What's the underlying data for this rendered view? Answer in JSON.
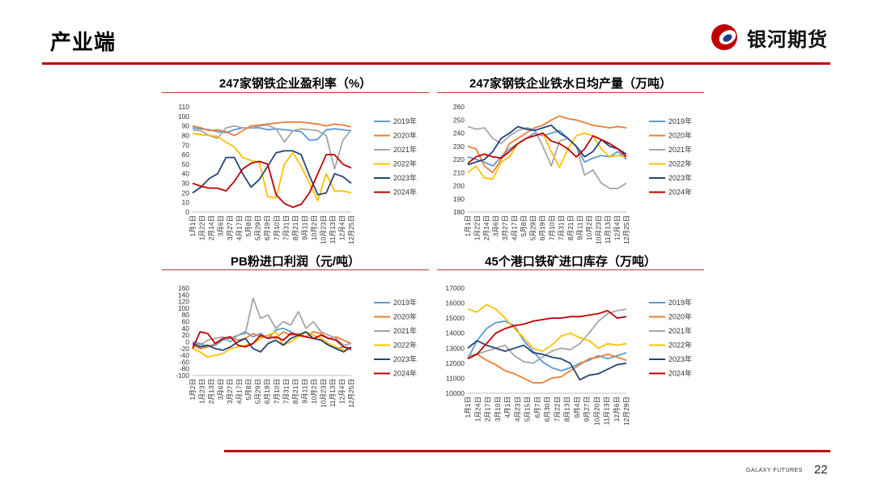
{
  "header": {
    "title": "产业端",
    "brand": "银河期货"
  },
  "footer": {
    "brand": "GALAXY FUTURES",
    "page": "22"
  },
  "chart_data": [
    {
      "type": "line",
      "title": "247家钢铁企业盈利率（%）",
      "ylim": [
        0,
        110
      ],
      "yticks": [
        0,
        10,
        20,
        30,
        40,
        50,
        60,
        70,
        80,
        90,
        100,
        110
      ],
      "xticks": [
        "1月1日",
        "1月22日",
        "2月14日",
        "3月6日",
        "3月27日",
        "4月17日",
        "5月8日",
        "5月29日",
        "6月19日",
        "7月10日",
        "7月31日",
        "8月21日",
        "9月11日",
        "10月2日",
        "10月23日",
        "11月13日",
        "12月4日",
        "12月25日"
      ],
      "grid": false,
      "legend": "right",
      "series": [
        {
          "name": "2019年",
          "color": "#5b9bd5",
          "values": [
            88,
            87,
            86,
            84,
            83,
            86,
            88,
            88,
            88,
            86,
            87,
            86,
            85,
            84,
            75,
            76,
            86,
            87,
            86,
            85
          ]
        },
        {
          "name": "2020年",
          "color": "#ed7d31",
          "values": [
            90,
            88,
            85,
            86,
            84,
            80,
            85,
            90,
            91,
            92,
            93,
            94,
            94,
            94,
            93,
            92,
            90,
            92,
            91,
            89
          ]
        },
        {
          "name": "2021年",
          "color": "#a5a5a5",
          "values": [
            86,
            85,
            80,
            77,
            88,
            90,
            88,
            88,
            90,
            91,
            87,
            73,
            85,
            87,
            86,
            85,
            80,
            45,
            75,
            86
          ]
        },
        {
          "name": "2022年",
          "color": "#ffc000",
          "values": [
            82,
            81,
            80,
            79,
            73,
            68,
            57,
            54,
            52,
            16,
            15,
            50,
            62,
            48,
            30,
            12,
            40,
            22,
            22,
            20
          ]
        },
        {
          "name": "2023年",
          "color": "#264478",
          "values": [
            20,
            26,
            35,
            40,
            57,
            57,
            40,
            26,
            34,
            48,
            62,
            64,
            64,
            60,
            38,
            18,
            20,
            40,
            37,
            30
          ]
        },
        {
          "name": "2024年",
          "color": "#c00000",
          "values": [
            30,
            27,
            25,
            25,
            22,
            32,
            45,
            51,
            53,
            50,
            18,
            9,
            5,
            8,
            20,
            40,
            60,
            60,
            50,
            46
          ]
        }
      ]
    },
    {
      "type": "line",
      "title": "247家钢铁企业铁水日均产量（万吨）",
      "ylim": [
        180,
        260
      ],
      "yticks": [
        180,
        190,
        200,
        210,
        220,
        230,
        240,
        250,
        260
      ],
      "xticks": [
        "1月1日",
        "1月22日",
        "2月14日",
        "3月6日",
        "3月27日",
        "4月17日",
        "5月8日",
        "5月29日",
        "6月19日",
        "7月10日",
        "7月31日",
        "8月21日",
        "9月11日",
        "10月2日",
        "10月23日",
        "11月13日",
        "12月4日",
        "12月25日"
      ],
      "grid": false,
      "legend": "right",
      "series": [
        {
          "name": "2019年",
          "color": "#5b9bd5",
          "values": [
            222,
            220,
            218,
            215,
            222,
            228,
            232,
            236,
            240,
            238,
            240,
            242,
            236,
            230,
            218,
            221,
            223,
            222,
            226,
            220
          ]
        },
        {
          "name": "2020年",
          "color": "#ed7d31",
          "values": [
            230,
            228,
            215,
            210,
            220,
            232,
            236,
            240,
            244,
            246,
            250,
            253,
            251,
            250,
            248,
            246,
            245,
            244,
            245,
            244
          ]
        },
        {
          "name": "2021年",
          "color": "#a5a5a5",
          "values": [
            245,
            243,
            244,
            236,
            232,
            238,
            242,
            244,
            243,
            230,
            215,
            234,
            236,
            230,
            208,
            212,
            202,
            198,
            198,
            202
          ]
        },
        {
          "name": "2022年",
          "color": "#ffc000",
          "values": [
            210,
            215,
            206,
            205,
            218,
            222,
            232,
            236,
            238,
            240,
            226,
            214,
            228,
            238,
            240,
            238,
            228,
            222,
            223,
            222
          ]
        },
        {
          "name": "2023年",
          "color": "#264478",
          "values": [
            216,
            218,
            220,
            226,
            236,
            240,
            245,
            243,
            242,
            244,
            246,
            240,
            236,
            230,
            222,
            226,
            235,
            230,
            228,
            224
          ]
        },
        {
          "name": "2024年",
          "color": "#c00000",
          "values": [
            217,
            222,
            224,
            222,
            221,
            226,
            232,
            236,
            238,
            240,
            234,
            232,
            228,
            222,
            228,
            238,
            235,
            232,
            228,
            222
          ]
        }
      ]
    },
    {
      "type": "line",
      "title": "PB粉进口利润（元/吨）",
      "ylim": [
        -100,
        160
      ],
      "yticks": [
        -100,
        -80,
        -60,
        -40,
        -20,
        0,
        20,
        40,
        60,
        80,
        100,
        120,
        140,
        160
      ],
      "xticks": [
        "1月2日",
        "1月23日",
        "2月13日",
        "3月6日",
        "3月27日",
        "4月17日",
        "5月8日",
        "5月29日",
        "6月19日",
        "7月10日",
        "7月31日",
        "8月21日",
        "9月11日",
        "10月2日",
        "10月23日",
        "11月13日",
        "12月4日",
        "12月25日"
      ],
      "grid": false,
      "legend": "right",
      "series": [
        {
          "name": "2019年",
          "color": "#5b9bd5",
          "values": [
            0,
            -5,
            -15,
            -10,
            5,
            10,
            20,
            30,
            15,
            25,
            10,
            35,
            40,
            30,
            20,
            15,
            10,
            5,
            -10,
            -20,
            -15,
            -25
          ]
        },
        {
          "name": "2020年",
          "color": "#ed7d31",
          "values": [
            -10,
            -20,
            -15,
            -5,
            10,
            15,
            5,
            10,
            25,
            15,
            20,
            10,
            30,
            20,
            25,
            15,
            30,
            25,
            10,
            15,
            5,
            -5
          ]
        },
        {
          "name": "2021年",
          "color": "#a5a5a5",
          "values": [
            -5,
            -10,
            5,
            10,
            15,
            0,
            20,
            25,
            130,
            70,
            80,
            40,
            60,
            50,
            90,
            40,
            60,
            30,
            20,
            10,
            -10,
            -5
          ]
        },
        {
          "name": "2022年",
          "color": "#ffc000",
          "values": [
            -20,
            -30,
            -45,
            -40,
            -35,
            -20,
            -15,
            -10,
            -5,
            10,
            20,
            30,
            -10,
            0,
            15,
            30,
            20,
            10,
            -5,
            -15,
            -25,
            -20
          ]
        },
        {
          "name": "2023年",
          "color": "#264478",
          "values": [
            -5,
            -15,
            -10,
            -20,
            -25,
            -15,
            0,
            10,
            -20,
            -30,
            -5,
            5,
            -10,
            10,
            20,
            30,
            10,
            5,
            -10,
            -20,
            -30,
            -15
          ]
        },
        {
          "name": "2024年",
          "color": "#c00000",
          "values": [
            -20,
            30,
            25,
            -5,
            10,
            15,
            -10,
            -15,
            -5,
            20,
            10,
            15,
            5,
            25,
            20,
            15,
            10,
            20,
            10,
            5,
            -15,
            -20
          ]
        }
      ]
    },
    {
      "type": "line",
      "title": "45个港口铁矿进口库存（万吨）",
      "ylim": [
        10000,
        17000
      ],
      "yticks": [
        10000,
        11000,
        12000,
        13000,
        14000,
        15000,
        16000,
        17000
      ],
      "xticks": [
        "1月1日",
        "1月24日",
        "2月17日",
        "3月10日",
        "4月1日",
        "4月23日",
        "5月15日",
        "6月7日",
        "6月30日",
        "7月22日",
        "8月13日",
        "9月4日",
        "9月27日",
        "10月20日",
        "11月13日",
        "12月6日",
        "12月29日"
      ],
      "grid": false,
      "legend": "right",
      "series": [
        {
          "name": "2019年",
          "color": "#5b9bd5",
          "values": [
            12300,
            13500,
            14300,
            14700,
            14800,
            14500,
            13500,
            12800,
            12100,
            11700,
            11500,
            11700,
            12000,
            12200,
            12500,
            12300,
            12500,
            12700
          ]
        },
        {
          "name": "2020年",
          "color": "#ed7d31",
          "values": [
            12300,
            12600,
            12200,
            11900,
            11500,
            11300,
            11000,
            10700,
            10700,
            11000,
            11100,
            11500,
            11900,
            12300,
            12400,
            12600,
            12400,
            12200
          ]
        },
        {
          "name": "2021年",
          "color": "#a5a5a5",
          "values": [
            12500,
            12600,
            12800,
            13000,
            13200,
            12500,
            12100,
            12000,
            12400,
            12800,
            13000,
            12900,
            13300,
            14000,
            14800,
            15300,
            15500,
            15600
          ]
        },
        {
          "name": "2022年",
          "color": "#ffc000",
          "values": [
            15600,
            15400,
            15900,
            15600,
            15000,
            14300,
            13700,
            13000,
            12800,
            13200,
            13800,
            14000,
            13700,
            13500,
            13000,
            13300,
            13200,
            13300
          ]
        },
        {
          "name": "2023年",
          "color": "#264478",
          "values": [
            13000,
            13500,
            13200,
            13000,
            12800,
            13000,
            13200,
            12700,
            12600,
            12400,
            12300,
            12000,
            10900,
            11200,
            11300,
            11600,
            11900,
            12000
          ]
        },
        {
          "name": "2024年",
          "color": "#c00000",
          "values": [
            12300,
            12600,
            13300,
            14000,
            14300,
            14500,
            14600,
            14800,
            14900,
            15000,
            15000,
            15100,
            15100,
            15200,
            15300,
            15500,
            15000,
            15100
          ]
        }
      ]
    }
  ]
}
